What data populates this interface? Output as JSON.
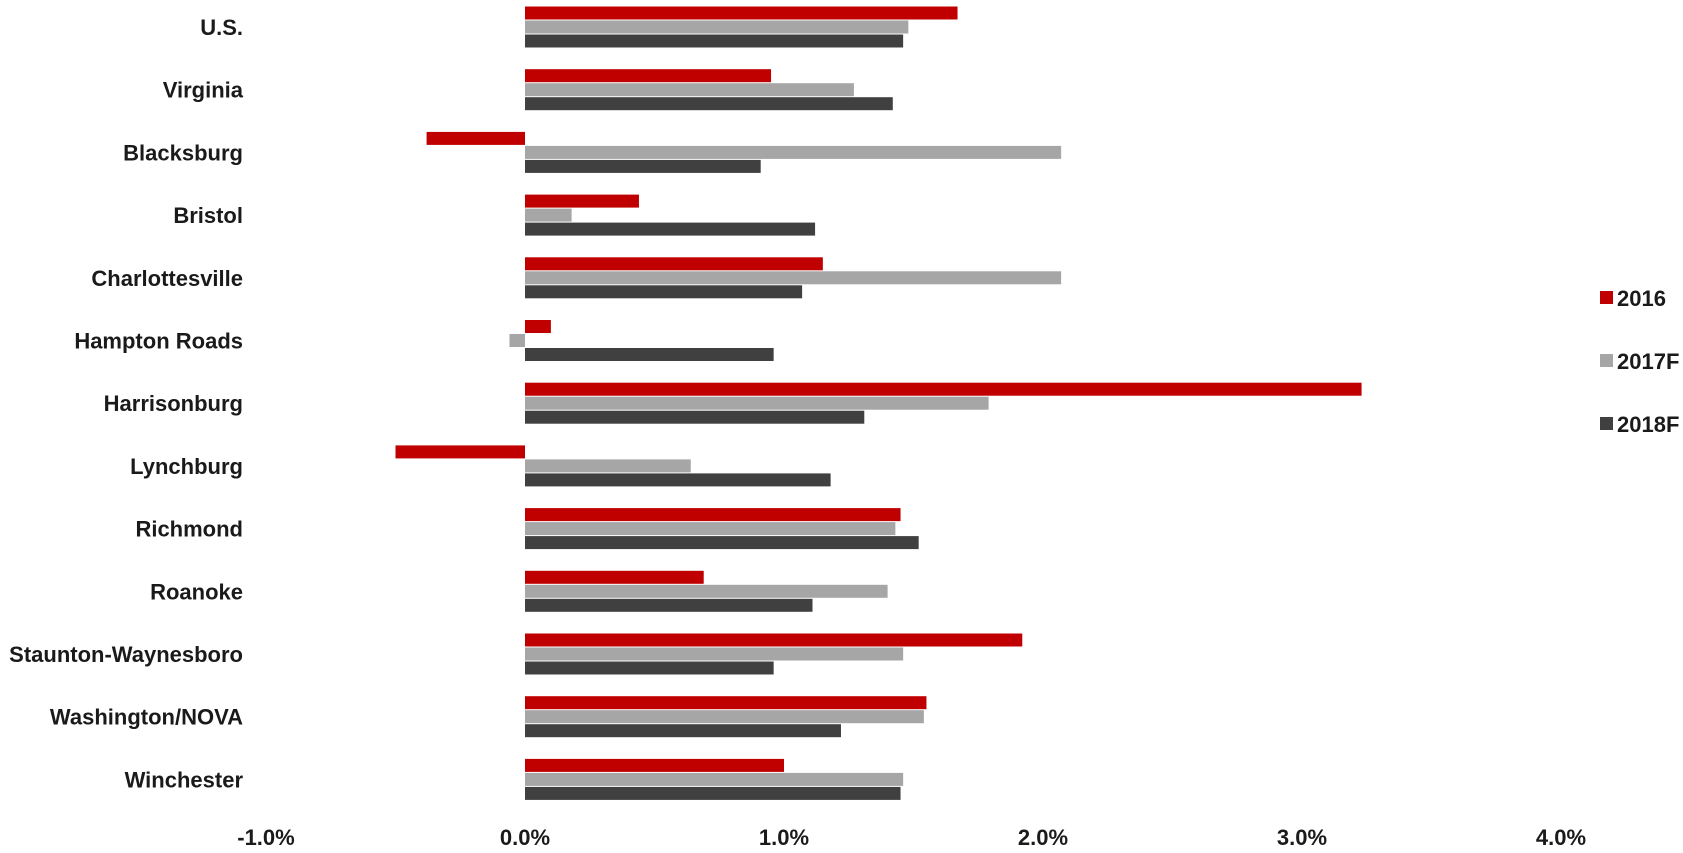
{
  "chart_data": {
    "type": "bar",
    "orientation": "horizontal",
    "title": "",
    "xlabel": "",
    "ylabel": "",
    "xlim": [
      -1.0,
      4.0
    ],
    "x_ticks": [
      -1.0,
      0.0,
      1.0,
      2.0,
      3.0,
      4.0
    ],
    "x_tick_labels": [
      "-1.0%",
      "0.0%",
      "1.0%",
      "2.0%",
      "3.0%",
      "4.0%"
    ],
    "grid": false,
    "legend_position": "right",
    "categories": [
      "U.S.",
      "Virginia",
      "Blacksburg",
      "Bristol",
      "Charlottesville",
      "Hampton Roads",
      "Harrisonburg",
      "Lynchburg",
      "Richmond",
      "Roanoke",
      "Staunton-Waynesboro",
      "Washington/NOVA",
      "Winchester"
    ],
    "series": [
      {
        "name": "2016",
        "color": "#c00000",
        "values": [
          1.67,
          0.95,
          -0.38,
          0.44,
          1.15,
          0.1,
          3.23,
          -0.5,
          1.45,
          0.69,
          1.92,
          1.55,
          1.0
        ]
      },
      {
        "name": "2017F",
        "color": "#a6a6a6",
        "values": [
          1.48,
          1.27,
          2.07,
          0.18,
          2.07,
          -0.06,
          1.79,
          0.64,
          1.43,
          1.4,
          1.46,
          1.54,
          1.46
        ]
      },
      {
        "name": "2018F",
        "color": "#404040",
        "values": [
          1.46,
          1.42,
          0.91,
          1.12,
          1.07,
          0.96,
          1.31,
          1.18,
          1.52,
          1.11,
          0.96,
          1.22,
          1.45
        ]
      }
    ]
  }
}
